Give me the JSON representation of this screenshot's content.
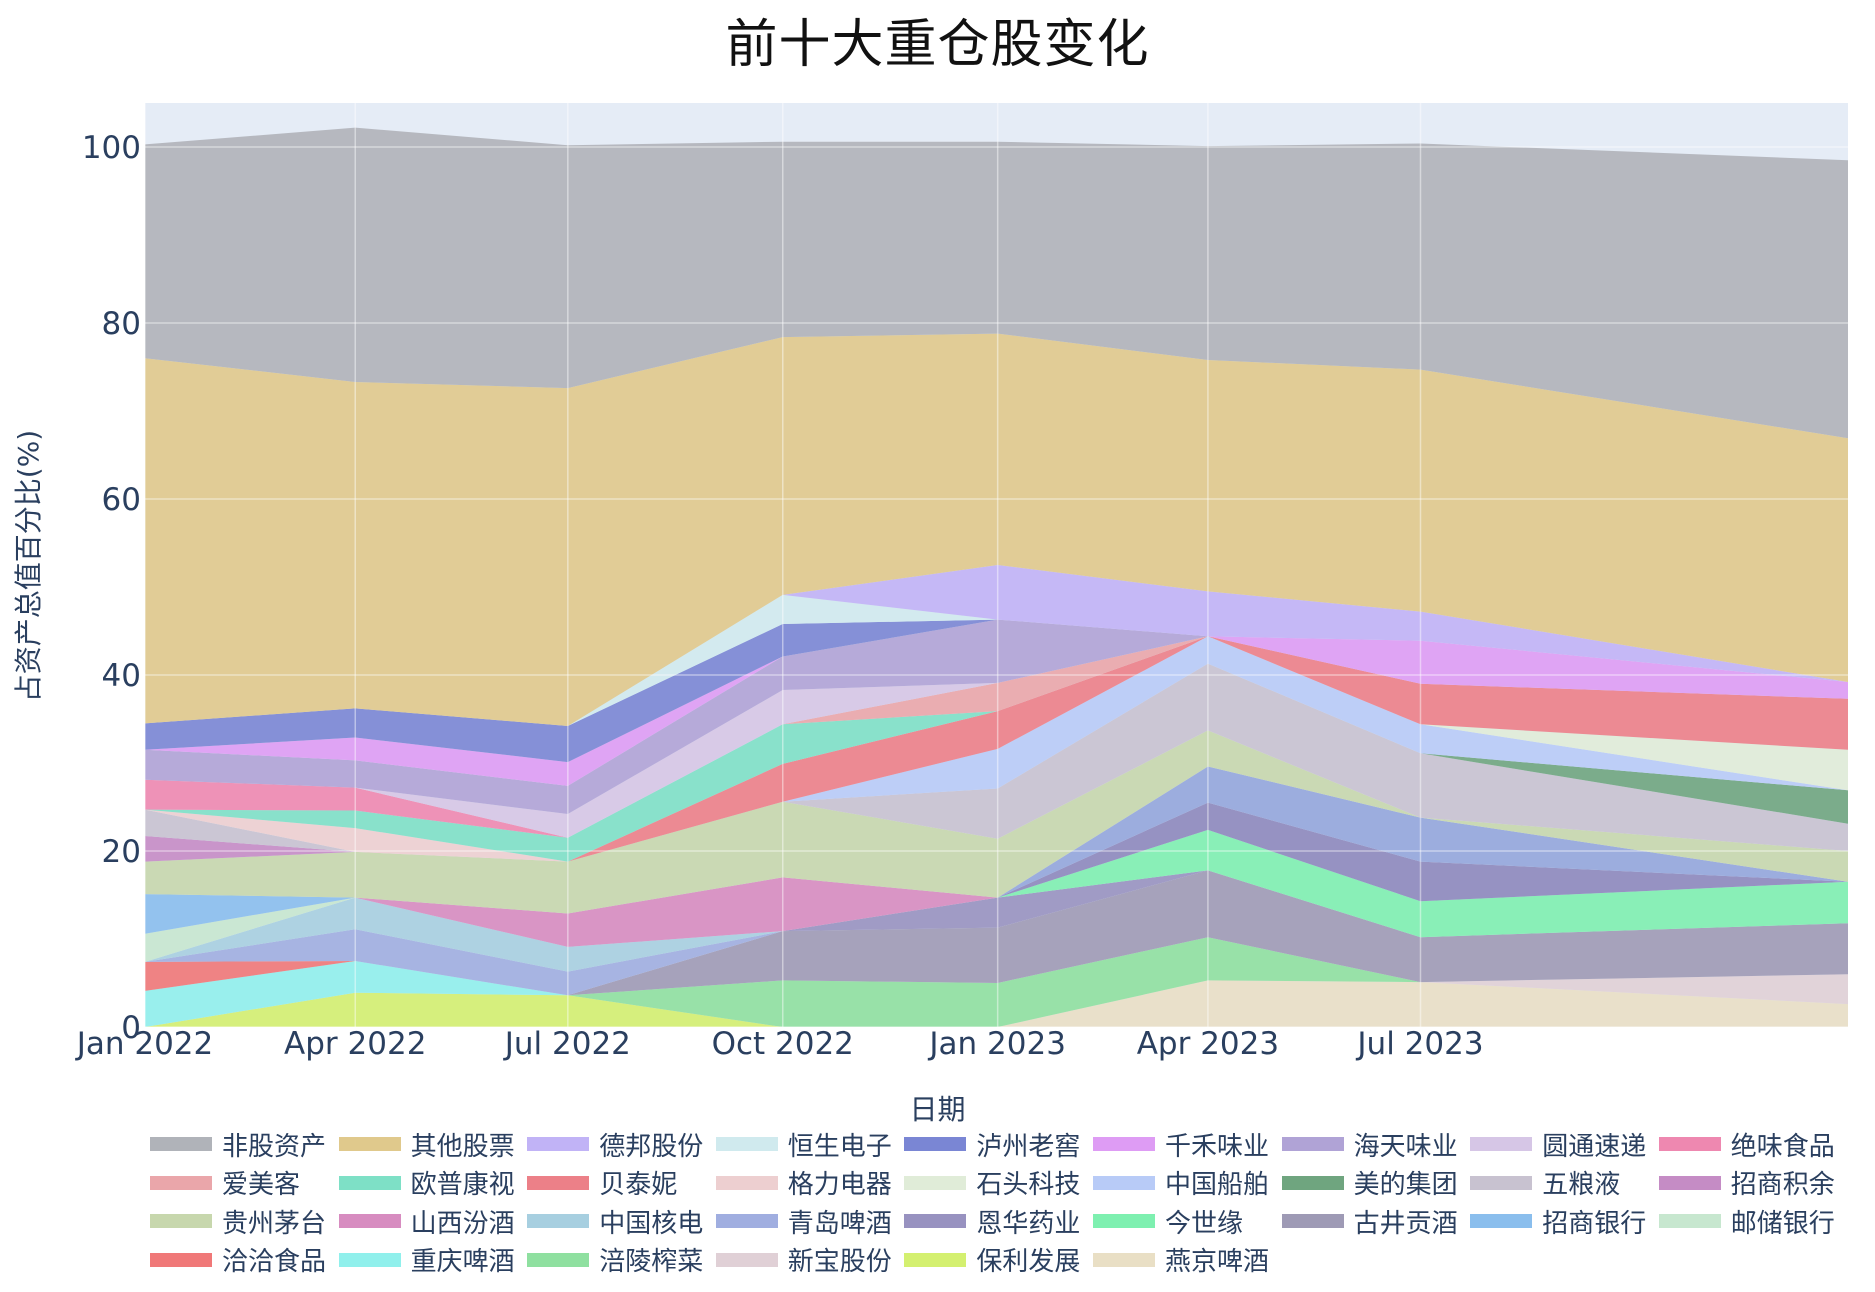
{
  "title": "前十大重仓股变化",
  "chart_data": {
    "type": "area",
    "title": "前十大重仓股变化",
    "xlabel": "日期",
    "ylabel": "占资产总值百分比(%)",
    "ylim": [
      0,
      105
    ],
    "x_range": [
      "2022-01-01",
      "2023-12-31"
    ],
    "x_ticks": [
      "Jan 2022",
      "Apr 2022",
      "Jul 2022",
      "Oct 2022",
      "Jan 2023",
      "Apr 2023",
      "Jul 2023"
    ],
    "y_ticks": [
      0,
      20,
      40,
      60,
      80,
      100
    ],
    "grid": true,
    "legend_position": "bottom",
    "stacked": true,
    "x": [
      "2022-01-01",
      "2022-04-01",
      "2022-07-01",
      "2022-10-01",
      "2023-01-01",
      "2023-04-01",
      "2023-07-01",
      "2023-12-31"
    ],
    "series": [
      {
        "name": "保利发展",
        "color": "#d4f070",
        "values": [
          0,
          3.9,
          3.6,
          0,
          0,
          0,
          0,
          0
        ]
      },
      {
        "name": "燕京啤酒",
        "color": "#e9dfc5",
        "values": [
          0,
          0,
          0,
          0,
          0,
          5.3,
          5.1,
          2.6
        ]
      },
      {
        "name": "涪陵榨菜",
        "color": "#8fe0a0",
        "values": [
          0,
          0,
          0,
          5.3,
          5.0,
          4.9,
          0,
          0
        ]
      },
      {
        "name": "新宝股份",
        "color": "#e0d0d6",
        "values": [
          0,
          0,
          0,
          0,
          0,
          0,
          0,
          3.4
        ]
      },
      {
        "name": "古井贡酒",
        "color": "#9e9ab5",
        "values": [
          0,
          0,
          0,
          5.6,
          6.3,
          7.6,
          5.1,
          5.8
        ]
      },
      {
        "name": "恩华药业",
        "color": "#9892c0",
        "values": [
          0,
          0,
          0,
          0,
          3.4,
          0,
          0,
          0
        ]
      },
      {
        "name": "今世缘",
        "color": "#7ef0b0",
        "values": [
          0,
          0,
          0,
          0,
          0,
          4.6,
          4.1,
          4.7
        ]
      },
      {
        "name": "重庆啤酒",
        "color": "#90f0ec",
        "values": [
          4.1,
          3.6,
          0,
          0,
          0,
          0,
          0,
          0
        ]
      },
      {
        "name": "洽洽食品",
        "color": "#f07878",
        "values": [
          3.3,
          0,
          0,
          0,
          0,
          0,
          0,
          0
        ]
      },
      {
        "name": "青岛啤酒",
        "color": "#a0aee0",
        "values": [
          0,
          3.6,
          2.7,
          0,
          0,
          0,
          0,
          0
        ]
      },
      {
        "name": "中国核电",
        "color": "#a7cfe0",
        "values": [
          0,
          3.6,
          2.8,
          0,
          0,
          0,
          0,
          0
        ]
      },
      {
        "name": "邮储银行",
        "color": "#c7e7cf",
        "values": [
          3.2,
          0,
          0,
          0,
          0,
          0,
          0,
          0
        ]
      },
      {
        "name": "招商银行",
        "color": "#8abeed",
        "values": [
          4.5,
          0,
          0,
          0,
          0,
          0,
          0,
          0
        ]
      },
      {
        "name": "恩华药业 ",
        "color": "#8d88bc",
        "values": [
          0,
          0,
          0,
          0,
          0,
          3.1,
          4.5,
          0
        ]
      },
      {
        "name": "山西汾酒",
        "color": "#d78cc0",
        "values": [
          0,
          0,
          3.8,
          6.1,
          0,
          0,
          0,
          0
        ]
      },
      {
        "name": "青岛啤酒 ",
        "color": "#94a6dc",
        "values": [
          0,
          0,
          0,
          0,
          0,
          4.1,
          5.0,
          0
        ]
      },
      {
        "name": "贵州茅台",
        "color": "#c7d7ad",
        "values": [
          3.7,
          5.2,
          5.9,
          8.6,
          6.7,
          4.1,
          0,
          3.5
        ]
      },
      {
        "name": "招商积余",
        "color": "#c58cc5",
        "values": [
          2.9,
          0,
          0,
          0,
          0,
          0,
          0,
          0
        ]
      },
      {
        "name": "五粮液",
        "color": "#c8c2d0",
        "values": [
          3.0,
          0,
          0,
          0,
          5.7,
          7.6,
          7.3,
          3.1
        ]
      },
      {
        "name": "美的集团",
        "color": "#6fa57f",
        "values": [
          0,
          0,
          0,
          0,
          0,
          0,
          0,
          3.8
        ]
      },
      {
        "name": "格力电器",
        "color": "#edcfd0",
        "values": [
          0,
          2.7,
          0,
          0,
          0,
          0,
          0,
          0
        ]
      },
      {
        "name": "中国船舶",
        "color": "#b8cbf7",
        "values": [
          0,
          0,
          0,
          0,
          4.5,
          3.1,
          3.3,
          0
        ]
      },
      {
        "name": "石头科技",
        "color": "#e0ecd8",
        "values": [
          0,
          0,
          0,
          0,
          0,
          0,
          0,
          4.6
        ]
      },
      {
        "name": "贝泰妮",
        "color": "#ec8088",
        "values": [
          0,
          0,
          0,
          4.3,
          4.3,
          0,
          4.6,
          5.8
        ]
      },
      {
        "name": "欧普康视",
        "color": "#7ee0c6",
        "values": [
          0,
          2.0,
          2.7,
          4.5,
          0,
          0,
          0,
          0
        ]
      },
      {
        "name": "爱美客",
        "color": "#eaa6aa",
        "values": [
          0,
          0,
          0,
          0,
          3.2,
          0,
          0,
          0
        ]
      },
      {
        "name": "绝味食品",
        "color": "#ee88b0",
        "values": [
          3.4,
          2.6,
          0,
          0,
          0,
          0,
          0,
          0
        ]
      },
      {
        "name": "圆通速递",
        "color": "#d6c6e6",
        "values": [
          0,
          0,
          2.7,
          3.9,
          0,
          0,
          0,
          0
        ]
      },
      {
        "name": "海天味业",
        "color": "#b0a3d6",
        "values": [
          3.4,
          3.1,
          3.2,
          3.8,
          7.2,
          0,
          0,
          0
        ]
      },
      {
        "name": "千禾味业",
        "color": "#de9cf4",
        "values": [
          0,
          2.6,
          2.7,
          0,
          0,
          0,
          4.9,
          1.9
        ]
      },
      {
        "name": "泸州老窖",
        "color": "#7a86d4",
        "values": [
          3.0,
          3.3,
          4.1,
          3.7,
          0,
          0,
          0,
          0
        ]
      },
      {
        "name": "恒生电子",
        "color": "#d0eaee",
        "values": [
          0,
          0,
          0,
          3.3,
          0,
          0,
          0,
          0
        ]
      },
      {
        "name": "德邦股份",
        "color": "#c1b3f6",
        "values": [
          0,
          0,
          0,
          0,
          6.2,
          5.1,
          3.3,
          0
        ]
      },
      {
        "name": "其他股票",
        "color": "#e0c98c",
        "values": [
          41.5,
          37.1,
          38.4,
          29.3,
          26.3,
          26.3,
          27.5,
          27.7
        ]
      },
      {
        "name": "非股资产",
        "color": "#b0b3b9",
        "values": [
          24.3,
          28.9,
          27.6,
          22.2,
          21.8,
          24.3,
          25.7,
          31.6
        ]
      }
    ]
  },
  "legend": [
    {
      "name": "非股资产",
      "color": "#b0b3b9"
    },
    {
      "name": "其他股票",
      "color": "#e0c98c"
    },
    {
      "name": "德邦股份",
      "color": "#c1b3f6"
    },
    {
      "name": "恒生电子",
      "color": "#d0eaee"
    },
    {
      "name": "泸州老窖",
      "color": "#7a86d4"
    },
    {
      "name": "千禾味业",
      "color": "#de9cf4"
    },
    {
      "name": "海天味业",
      "color": "#b0a3d6"
    },
    {
      "name": "圆通速递",
      "color": "#d6c6e6"
    },
    {
      "name": "绝味食品",
      "color": "#ee88b0"
    },
    {
      "name": "爱美客",
      "color": "#eaa6aa"
    },
    {
      "name": "欧普康视",
      "color": "#7ee0c6"
    },
    {
      "name": "贝泰妮",
      "color": "#ec8088"
    },
    {
      "name": "格力电器",
      "color": "#edcfd0"
    },
    {
      "name": "石头科技",
      "color": "#e0ecd8"
    },
    {
      "name": "中国船舶",
      "color": "#b8cbf7"
    },
    {
      "name": "美的集团",
      "color": "#6fa57f"
    },
    {
      "name": "五粮液",
      "color": "#c8c2d0"
    },
    {
      "name": "招商积余",
      "color": "#c58cc5"
    },
    {
      "name": "贵州茅台",
      "color": "#c7d7ad"
    },
    {
      "name": "山西汾酒",
      "color": "#d78cc0"
    },
    {
      "name": "中国核电",
      "color": "#a7cfe0"
    },
    {
      "name": "青岛啤酒",
      "color": "#a0aee0"
    },
    {
      "name": "恩华药业",
      "color": "#9892c0"
    },
    {
      "name": "今世缘",
      "color": "#7ef0b0"
    },
    {
      "name": "古井贡酒",
      "color": "#9e9ab5"
    },
    {
      "name": "招商银行",
      "color": "#8abeed"
    },
    {
      "name": "邮储银行",
      "color": "#c7e7cf"
    },
    {
      "name": "洽洽食品",
      "color": "#f07878"
    },
    {
      "name": "重庆啤酒",
      "color": "#90f0ec"
    },
    {
      "name": "涪陵榨菜",
      "color": "#8fe0a0"
    },
    {
      "name": "新宝股份",
      "color": "#e0d0d6"
    },
    {
      "name": "保利发展",
      "color": "#d4f070"
    },
    {
      "name": "燕京啤酒",
      "color": "#e9dfc5"
    }
  ]
}
